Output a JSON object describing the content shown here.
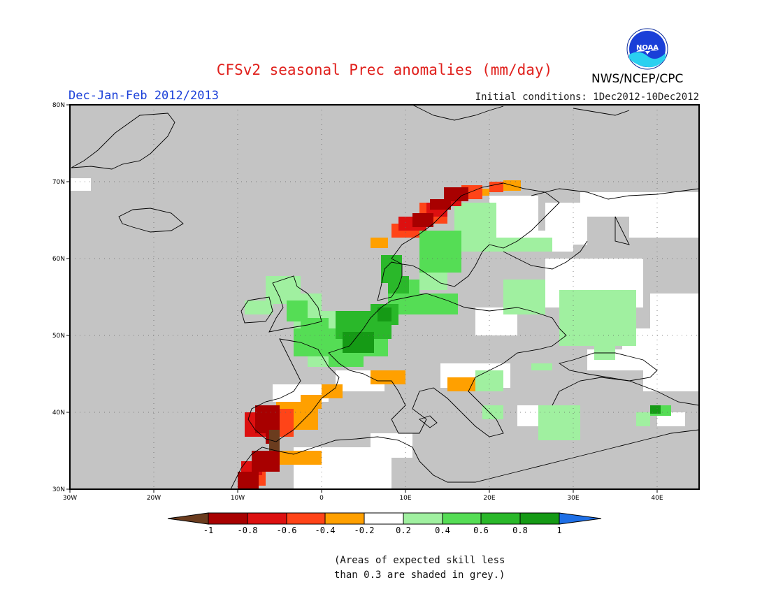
{
  "title": "CFSv2 seasonal Prec anomalies (mm/day)",
  "period": "Dec-Jan-Feb 2012/2013",
  "initial_conditions": "Initial conditions: 1Dec2012-10Dec2012",
  "agency": "NWS/NCEP/CPC",
  "logo": {
    "text": "NOAA",
    "icon": "noaa-logo-icon"
  },
  "map": {
    "region": "Europe",
    "lon_range": [
      -30,
      45
    ],
    "lat_range": [
      30,
      80
    ],
    "lon_ticks": [
      "30W",
      "20W",
      "10W",
      "0",
      "10E",
      "20E",
      "30E",
      "40E"
    ],
    "lat_ticks": [
      "80N",
      "70N",
      "60N",
      "50N",
      "40N",
      "30N"
    ],
    "grid": "dotted",
    "colors": {
      "grey_low_skill": "#c4c4c4",
      "neutral": "#ffffff",
      "light_green": "#a0f0a0",
      "green": "#55dd55",
      "mid_green": "#2ab82a",
      "dark_green": "#159a15",
      "orange": "#ffa000",
      "red_orange": "#ff4418",
      "red": "#dd1010",
      "dark_red": "#a80000",
      "brown": "#6b3c1e"
    }
  },
  "colorbar": {
    "labels": [
      "-1",
      "-0.8",
      "-0.6",
      "-0.4",
      "-0.2",
      "0.2",
      "0.4",
      "0.6",
      "0.8",
      "1"
    ],
    "colors": [
      "#6b3c1e",
      "#a80000",
      "#dd1010",
      "#ff4418",
      "#ffa000",
      "#ffffff",
      "#a0f0a0",
      "#55dd55",
      "#2ab82a",
      "#159a15",
      "#1e6fe6"
    ]
  },
  "note": {
    "line1": "(Areas of expected skill less",
    "line2": "than 0.3 are shaded in grey.)"
  }
}
